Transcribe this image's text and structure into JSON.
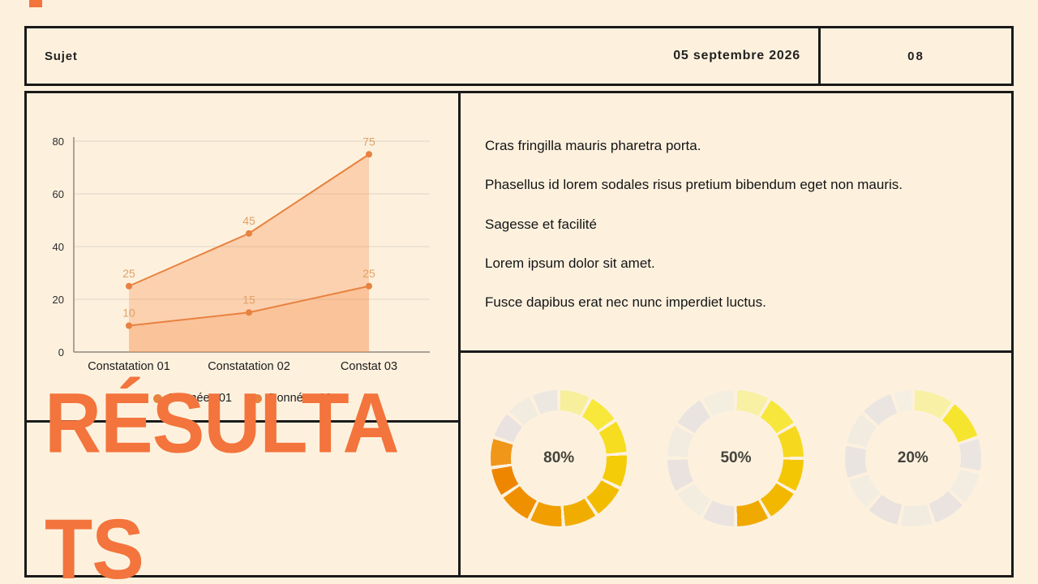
{
  "meta": {
    "bg": "#fdf1de",
    "border": "#1a1a1a",
    "accent": "#f3743c",
    "chart_line_color": "#e8823f"
  },
  "header": {
    "subject": "Sujet",
    "date": "05 septembre 2026",
    "page": "08"
  },
  "title": {
    "text": "RÉSULTATS",
    "line1": "RÉSULTA",
    "line2": "TS"
  },
  "paragraphs": [
    "Cras fringilla mauris pharetra porta.",
    "Phasellus id lorem sodales risus pretium bibendum eget non mauris.",
    "Sagesse et facilité",
    "Lorem ipsum dolor sit amet.",
    "Fusce dapibus erat nec nunc imperdiet luctus."
  ],
  "chart_data": {
    "type": "line",
    "categories": [
      "Constatation 01",
      "Constatation 02",
      "Constat 03"
    ],
    "series": [
      {
        "name": "Données 01",
        "values": [
          25,
          45,
          75
        ]
      },
      {
        "name": "Données 02",
        "values": [
          10,
          15,
          25
        ]
      }
    ],
    "ylim": [
      0,
      80
    ],
    "yticks": [
      0,
      20,
      40,
      60,
      80
    ],
    "area_fill": true,
    "legend_position": "bottom",
    "line_color": "#e8823f",
    "fill_color": "rgba(247,146,84,0.34)",
    "fill_color2": "rgba(247,146,84,0.22)",
    "label_color": "#dfa167"
  },
  "donuts": [
    {
      "label": "80%",
      "value": 80,
      "segments": [
        {
          "color": "#f7ef9c",
          "end": 28
        },
        {
          "color": "#f7e83b",
          "end": 56
        },
        {
          "color": "#f6dd1f",
          "end": 86
        },
        {
          "color": "#f4cc08",
          "end": 116
        },
        {
          "color": "#f2bc00",
          "end": 146
        },
        {
          "color": "#f0ad00",
          "end": 176
        },
        {
          "color": "#f19e00",
          "end": 206
        },
        {
          "color": "#ef9000",
          "end": 236
        },
        {
          "color": "#ee8600",
          "end": 262
        },
        {
          "color": "#f0971a",
          "end": 288
        },
        {
          "color": "#e9e2e0",
          "end": 312
        },
        {
          "color": "#f2ece0",
          "end": 336
        },
        {
          "color": "#ede7e2",
          "end": 360
        }
      ]
    },
    {
      "label": "50%",
      "value": 50,
      "segments": [
        {
          "color": "#f8f0a2",
          "end": 30
        },
        {
          "color": "#f7e73c",
          "end": 60
        },
        {
          "color": "#f6d91f",
          "end": 90
        },
        {
          "color": "#f4c705",
          "end": 120
        },
        {
          "color": "#f2b800",
          "end": 150
        },
        {
          "color": "#f0a900",
          "end": 180
        },
        {
          "color": "#eae3e0",
          "end": 210
        },
        {
          "color": "#f3ede0",
          "end": 240
        },
        {
          "color": "#e9e2df",
          "end": 270
        },
        {
          "color": "#f2ece0",
          "end": 300
        },
        {
          "color": "#eae4e1",
          "end": 330
        },
        {
          "color": "#f4eee1",
          "end": 360
        }
      ]
    },
    {
      "label": "20%",
      "value": 20,
      "segments": [
        {
          "color": "#f8f1a5",
          "end": 36
        },
        {
          "color": "#f6e52e",
          "end": 72
        },
        {
          "color": "#ebe5e2",
          "end": 102
        },
        {
          "color": "#f3ede1",
          "end": 132
        },
        {
          "color": "#eae3e0",
          "end": 162
        },
        {
          "color": "#f2ece0",
          "end": 192
        },
        {
          "color": "#e9e2df",
          "end": 222
        },
        {
          "color": "#f3ede1",
          "end": 252
        },
        {
          "color": "#eae4e1",
          "end": 282
        },
        {
          "color": "#f2ece0",
          "end": 312
        },
        {
          "color": "#ebe5e2",
          "end": 342
        },
        {
          "color": "#f5efe3",
          "end": 360
        }
      ]
    }
  ]
}
